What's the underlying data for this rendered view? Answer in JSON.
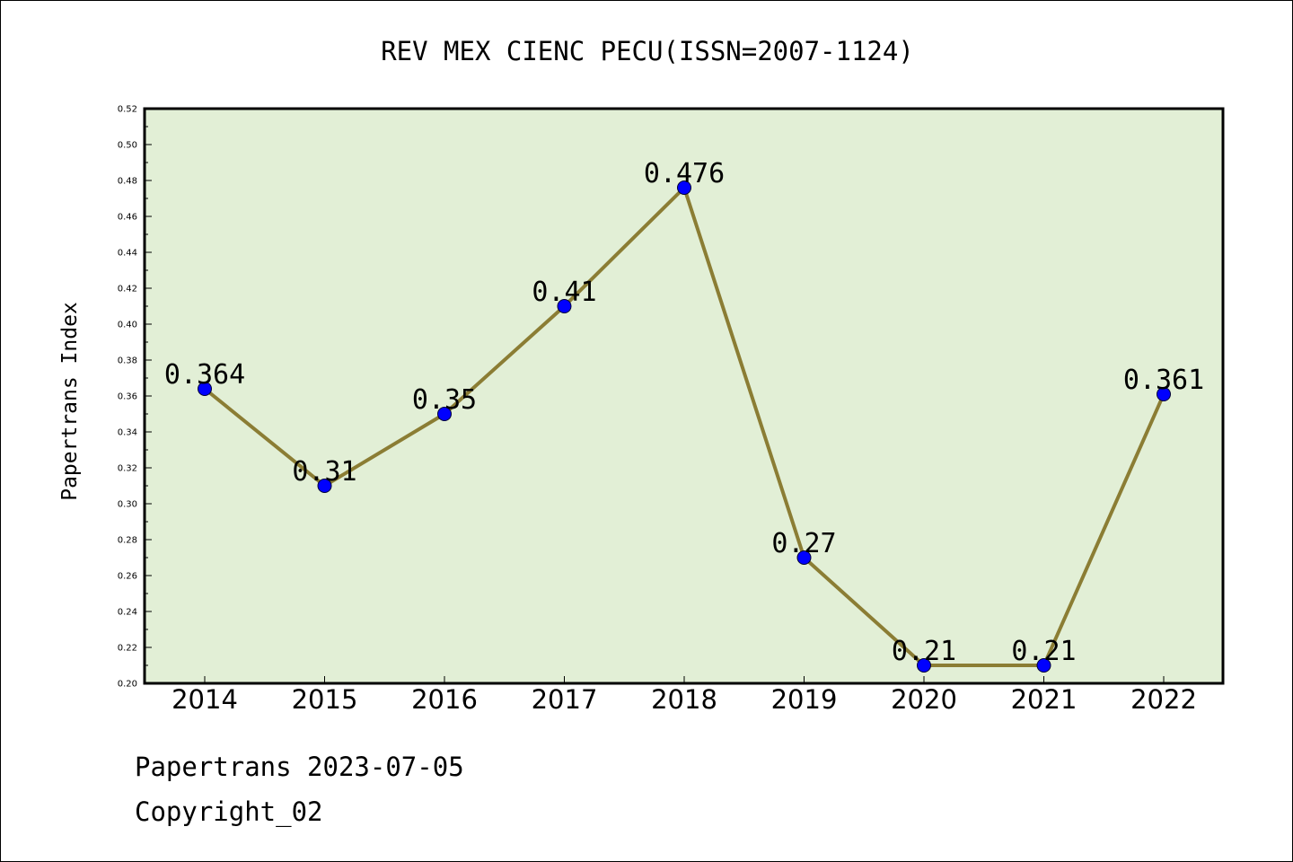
{
  "chart_data": {
    "type": "line",
    "title": "REV MEX CIENC PECU(ISSN=2007-1124)",
    "xlabel": "",
    "ylabel": "Papertrans Index",
    "categories": [
      "2014",
      "2015",
      "2016",
      "2017",
      "2018",
      "2019",
      "2020",
      "2021",
      "2022"
    ],
    "series": [
      {
        "values": [
          0.364,
          0.31,
          0.35,
          0.41,
          0.476,
          0.27,
          0.21,
          0.21,
          0.361
        ],
        "data_labels": [
          "0.364",
          "0.31",
          "0.35",
          "0.41",
          "0.476",
          "0.27",
          "0.21",
          "0.21",
          "0.361"
        ]
      }
    ],
    "ylim": [
      0.2,
      0.52
    ],
    "yticks": [
      "0.20",
      "0.22",
      "0.24",
      "0.26",
      "0.28",
      "0.30",
      "0.32",
      "0.34",
      "0.36",
      "0.38",
      "0.40",
      "0.42",
      "0.44",
      "0.46",
      "0.48",
      "0.50",
      "0.52"
    ],
    "grid": false,
    "legend": "none"
  },
  "footer": {
    "line1": "Papertrans 2023-07-05",
    "line2": "Copyright_02"
  },
  "colors": {
    "plot_background": "#e2efd6",
    "line": "#8b7d34",
    "marker": "#0000ff",
    "axis": "#000000"
  }
}
